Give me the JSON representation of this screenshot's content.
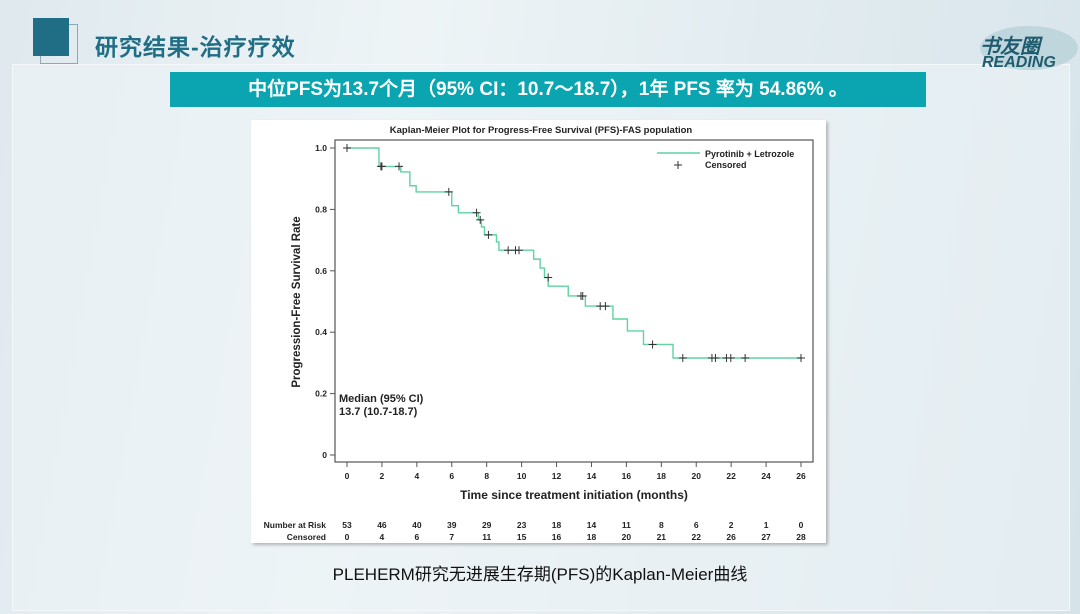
{
  "header": {
    "title": "研究结果-治疗疗效"
  },
  "logo": {
    "cn": "书友圈",
    "en": "READING"
  },
  "banner": {
    "text": "中位PFS为13.7个月（95% CI：10.7～18.7），1年 PFS 率为 54.86% 。"
  },
  "caption": "PLEHERM研究无进展生存期(PFS)的Kaplan-Meier曲线",
  "colors": {
    "accent": "#0aa5b0",
    "title": "#1f6e86",
    "curve": "#5fd3a0"
  },
  "chart_data": {
    "type": "line",
    "title": "Kaplan-Meier Plot for Progress-Free Survival (PFS)-FAS population",
    "xlabel": "Time since treatment initiation (months)",
    "ylabel": "Progression-Free Survival Rate",
    "xlim": [
      0,
      26
    ],
    "ylim": [
      0,
      1.0
    ],
    "xticks": [
      0,
      2,
      4,
      6,
      8,
      10,
      12,
      14,
      16,
      18,
      20,
      22,
      24,
      26
    ],
    "yticks": [
      {
        "v": 0,
        "label": "0"
      },
      {
        "v": 0.2,
        "label": "0.2"
      },
      {
        "v": 0.4,
        "label": "0.4"
      },
      {
        "v": 0.6,
        "label": "0.6"
      },
      {
        "v": 0.8,
        "label": "0.8"
      },
      {
        "v": 1.0,
        "label": "1.0"
      }
    ],
    "legend": {
      "position": "top-right",
      "series_label": "Pyrotinib + Letrozole",
      "censored_label": "Censored"
    },
    "annotation": [
      "Median (95% CI)",
      "13.7 (10.7-18.7)"
    ],
    "series": [
      {
        "name": "Pyrotinib + Letrozole",
        "steps": [
          [
            0,
            1.0
          ],
          [
            1.83,
            0.94
          ],
          [
            3.08,
            0.922
          ],
          [
            3.6,
            0.877
          ],
          [
            3.96,
            0.857
          ],
          [
            6.0,
            0.812
          ],
          [
            6.38,
            0.789
          ],
          [
            7.52,
            0.766
          ],
          [
            7.7,
            0.743
          ],
          [
            7.87,
            0.717
          ],
          [
            8.56,
            0.694
          ],
          [
            8.7,
            0.667
          ],
          [
            10.69,
            0.638
          ],
          [
            11.06,
            0.609
          ],
          [
            11.31,
            0.578
          ],
          [
            11.52,
            0.55
          ],
          [
            12.67,
            0.518
          ],
          [
            13.65,
            0.485
          ],
          [
            15.23,
            0.443
          ],
          [
            16.06,
            0.404
          ],
          [
            16.98,
            0.36
          ],
          [
            18.67,
            0.316
          ]
        ],
        "end_time": 26,
        "censored": [
          [
            0,
            1.0
          ],
          [
            1.94,
            0.94
          ],
          [
            2.0,
            0.94
          ],
          [
            2.98,
            0.94
          ],
          [
            5.83,
            0.857
          ],
          [
            7.42,
            0.789
          ],
          [
            7.63,
            0.766
          ],
          [
            8.1,
            0.717
          ],
          [
            9.23,
            0.667
          ],
          [
            9.65,
            0.667
          ],
          [
            9.85,
            0.667
          ],
          [
            11.52,
            0.578
          ],
          [
            13.4,
            0.518
          ],
          [
            13.5,
            0.518
          ],
          [
            14.5,
            0.485
          ],
          [
            14.8,
            0.485
          ],
          [
            17.5,
            0.36
          ],
          [
            19.23,
            0.316
          ],
          [
            20.9,
            0.316
          ],
          [
            21.1,
            0.316
          ],
          [
            21.73,
            0.316
          ],
          [
            21.98,
            0.316
          ],
          [
            22.8,
            0.316
          ],
          [
            26,
            0.316
          ]
        ]
      }
    ],
    "risk_table": {
      "labels": [
        "Number at Risk",
        "Censored"
      ],
      "at_risk": [
        53,
        46,
        40,
        39,
        29,
        23,
        18,
        14,
        11,
        8,
        6,
        2,
        1,
        0
      ],
      "censored": [
        0,
        4,
        6,
        7,
        11,
        15,
        16,
        18,
        20,
        21,
        22,
        26,
        27,
        28
      ]
    }
  }
}
